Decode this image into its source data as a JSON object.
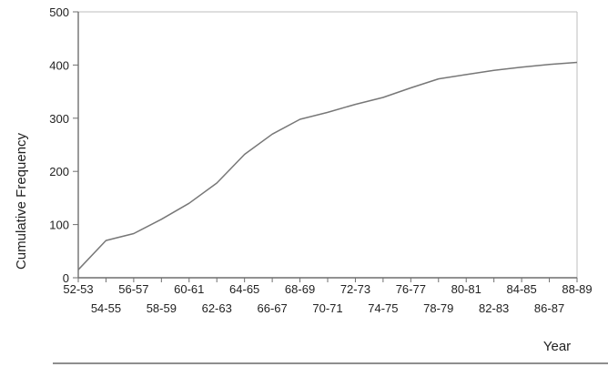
{
  "chart_data": {
    "type": "line",
    "xlabel": "Year",
    "ylabel": "Cumulative Frequency",
    "ylim": [
      0,
      500
    ],
    "yticks": [
      0,
      100,
      200,
      300,
      400,
      500
    ],
    "grid": false,
    "x": [
      "52-53",
      "54-55",
      "56-57",
      "58-59",
      "60-61",
      "62-63",
      "64-65",
      "66-67",
      "68-69",
      "70-71",
      "72-73",
      "74-75",
      "76-77",
      "78-79",
      "80-81",
      "82-83",
      "84-85",
      "86-87",
      "88-89"
    ],
    "series": [
      {
        "values": [
          15,
          70,
          83,
          110,
          140,
          178,
          232,
          270,
          298,
          311,
          326,
          339,
          357,
          374,
          382,
          390,
          396,
          401,
          405
        ]
      }
    ],
    "line_color": "#777777"
  }
}
